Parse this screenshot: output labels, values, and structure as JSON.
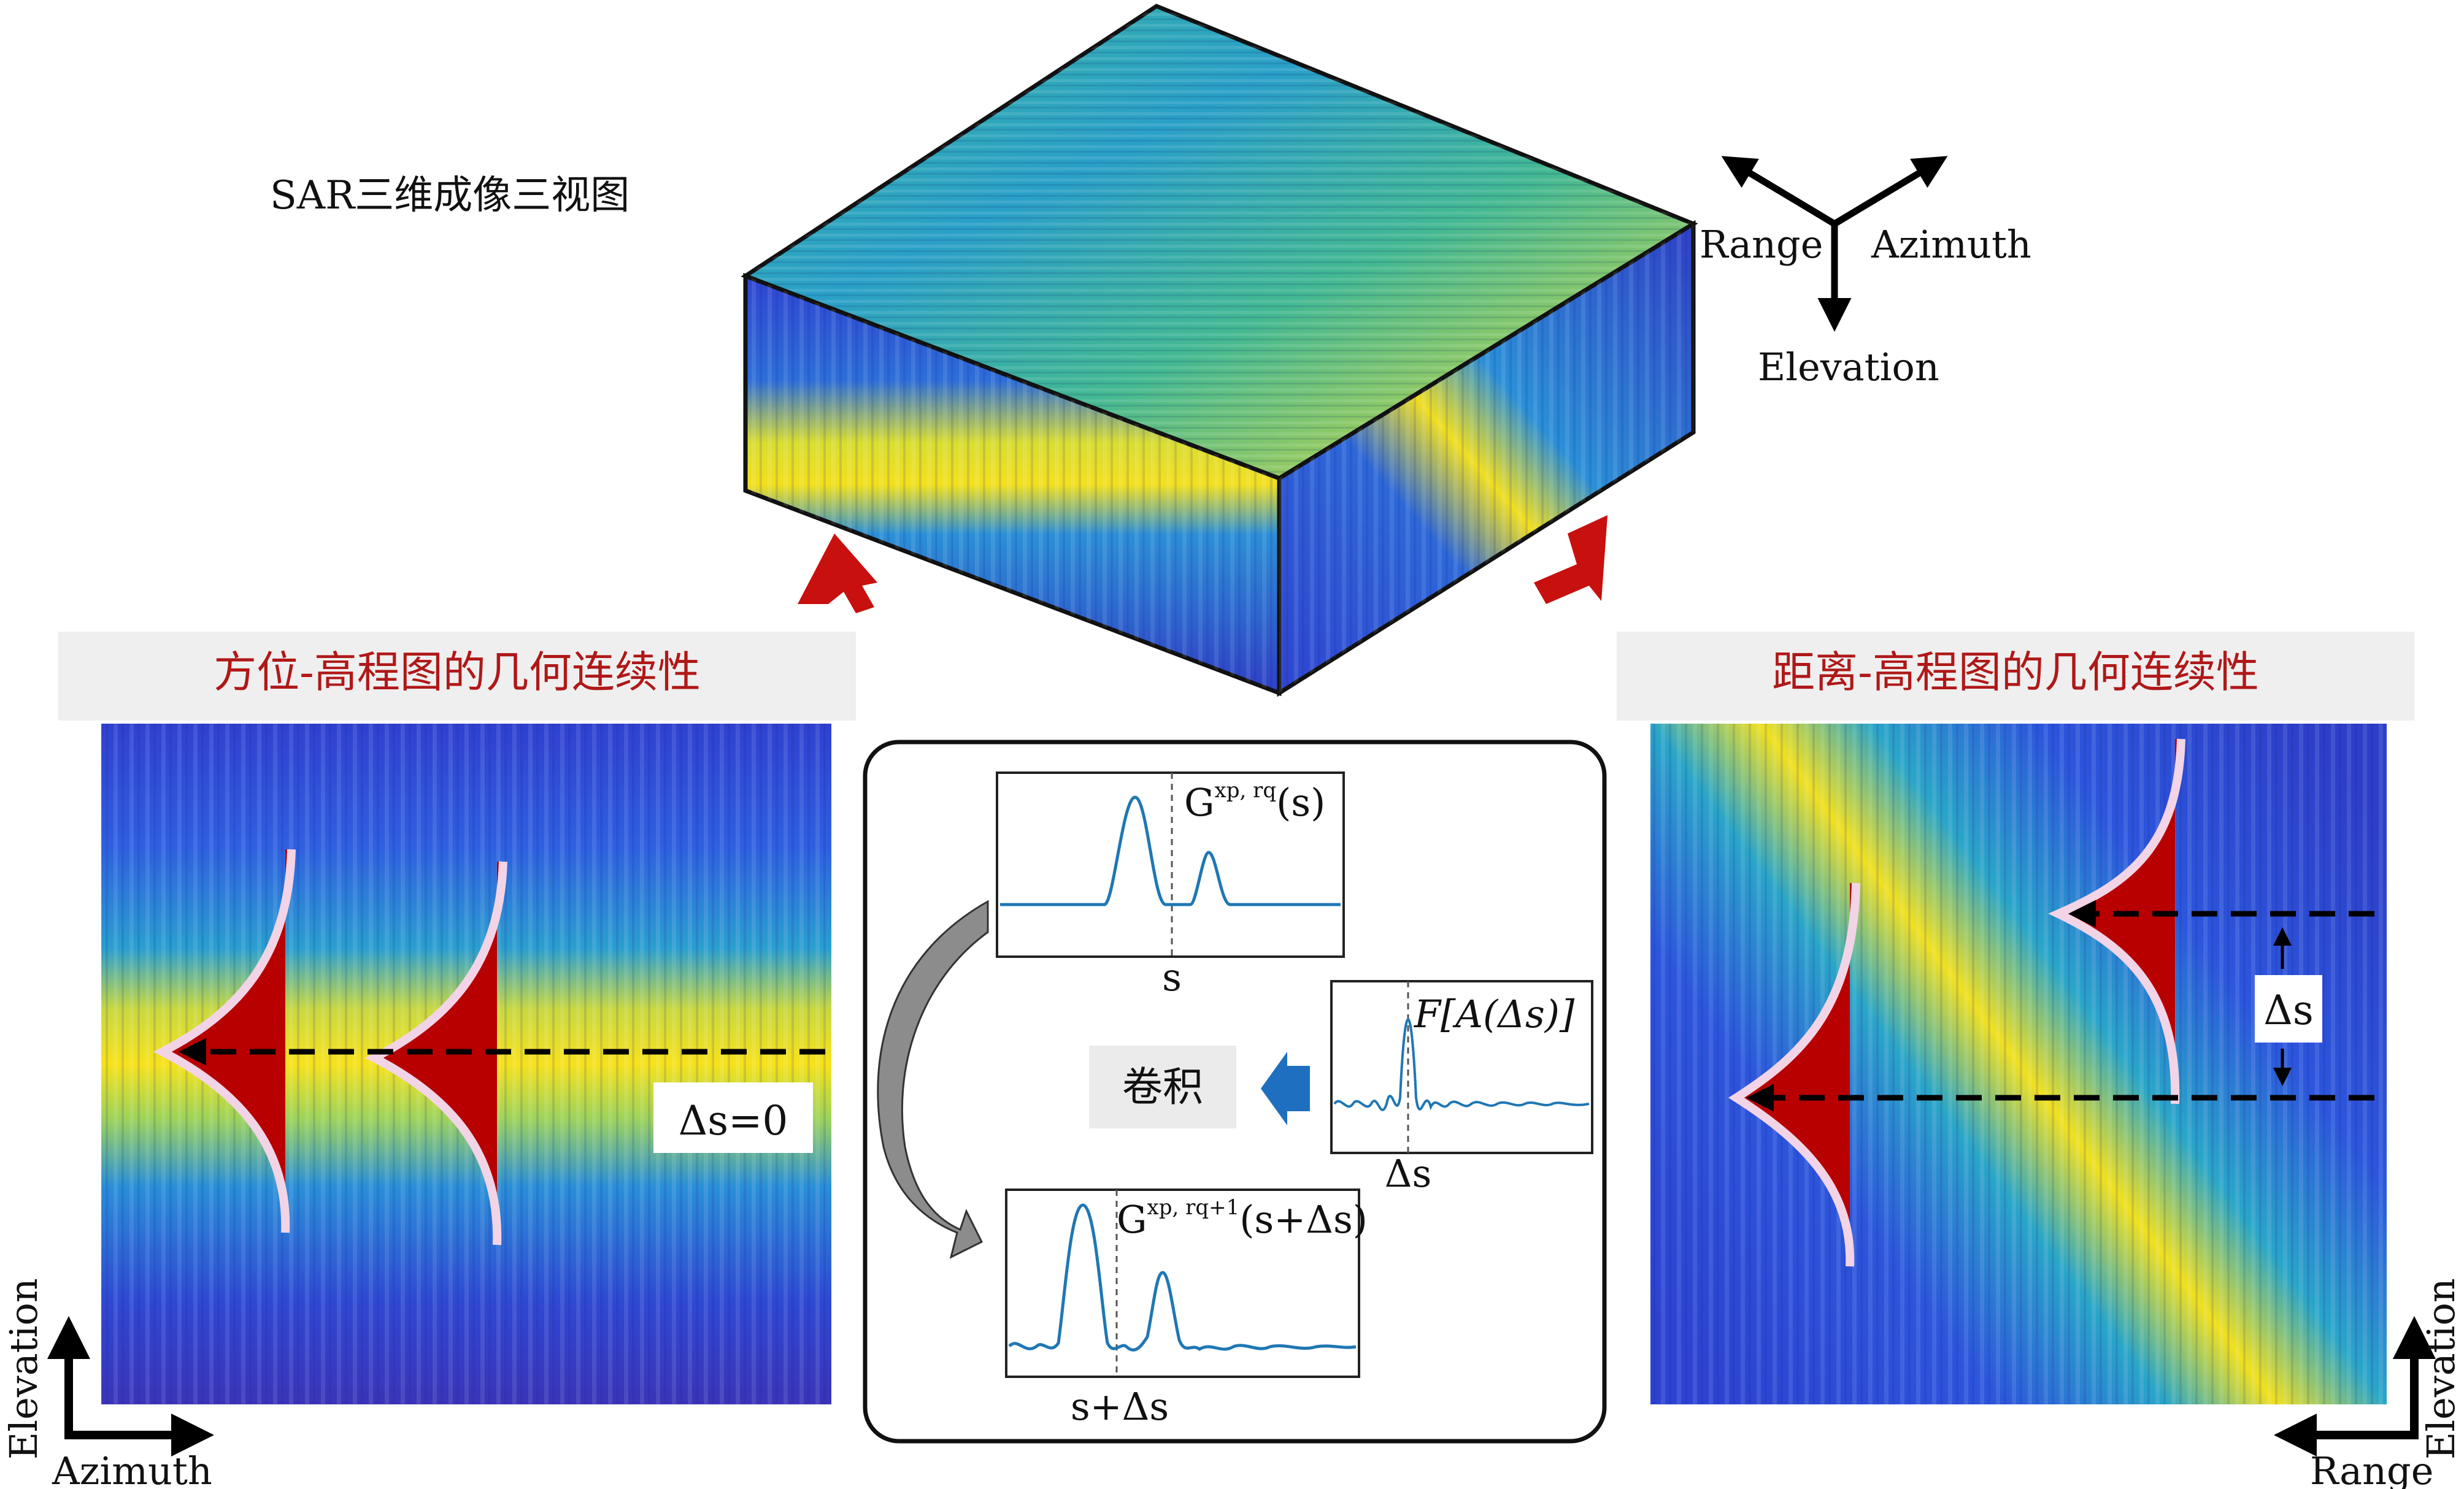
{
  "title": "SAR三维成像三视图",
  "axes3d": {
    "range": "Range",
    "azimuth": "Azimuth",
    "elevation": "Elevation"
  },
  "left_panel": {
    "heading": "方位-高程图的几何连续性",
    "delta_label": "Δs=0",
    "x_axis": "Azimuth",
    "y_axis": "Elevation"
  },
  "right_panel": {
    "heading": "距离-高程图的几何连续性",
    "delta_label": "Δs",
    "x_axis": "Range",
    "y_axis": "Elevation"
  },
  "center_box": {
    "top_plot": {
      "title": "G^{xp, rq}(s)",
      "xlabel": "s"
    },
    "kernel_plot": {
      "title": "F[A(Δs)]",
      "xlabel": "Δs"
    },
    "bottom_plot": {
      "title": "G^{xp, rq+1}(s+Δs)",
      "xlabel": "s+Δs"
    },
    "operation": "卷积"
  },
  "colors": {
    "heatmap_low": "#2b3bd6",
    "heatmap_mid": "#27b1a3",
    "heatmap_high": "#f6e51b",
    "arrow_red": "#c8100e",
    "gaussian_fill": "#b80000",
    "heading_bg": "#efefef",
    "plot_line": "#1f77b4",
    "conv_arrow": "#1e6fc0"
  }
}
